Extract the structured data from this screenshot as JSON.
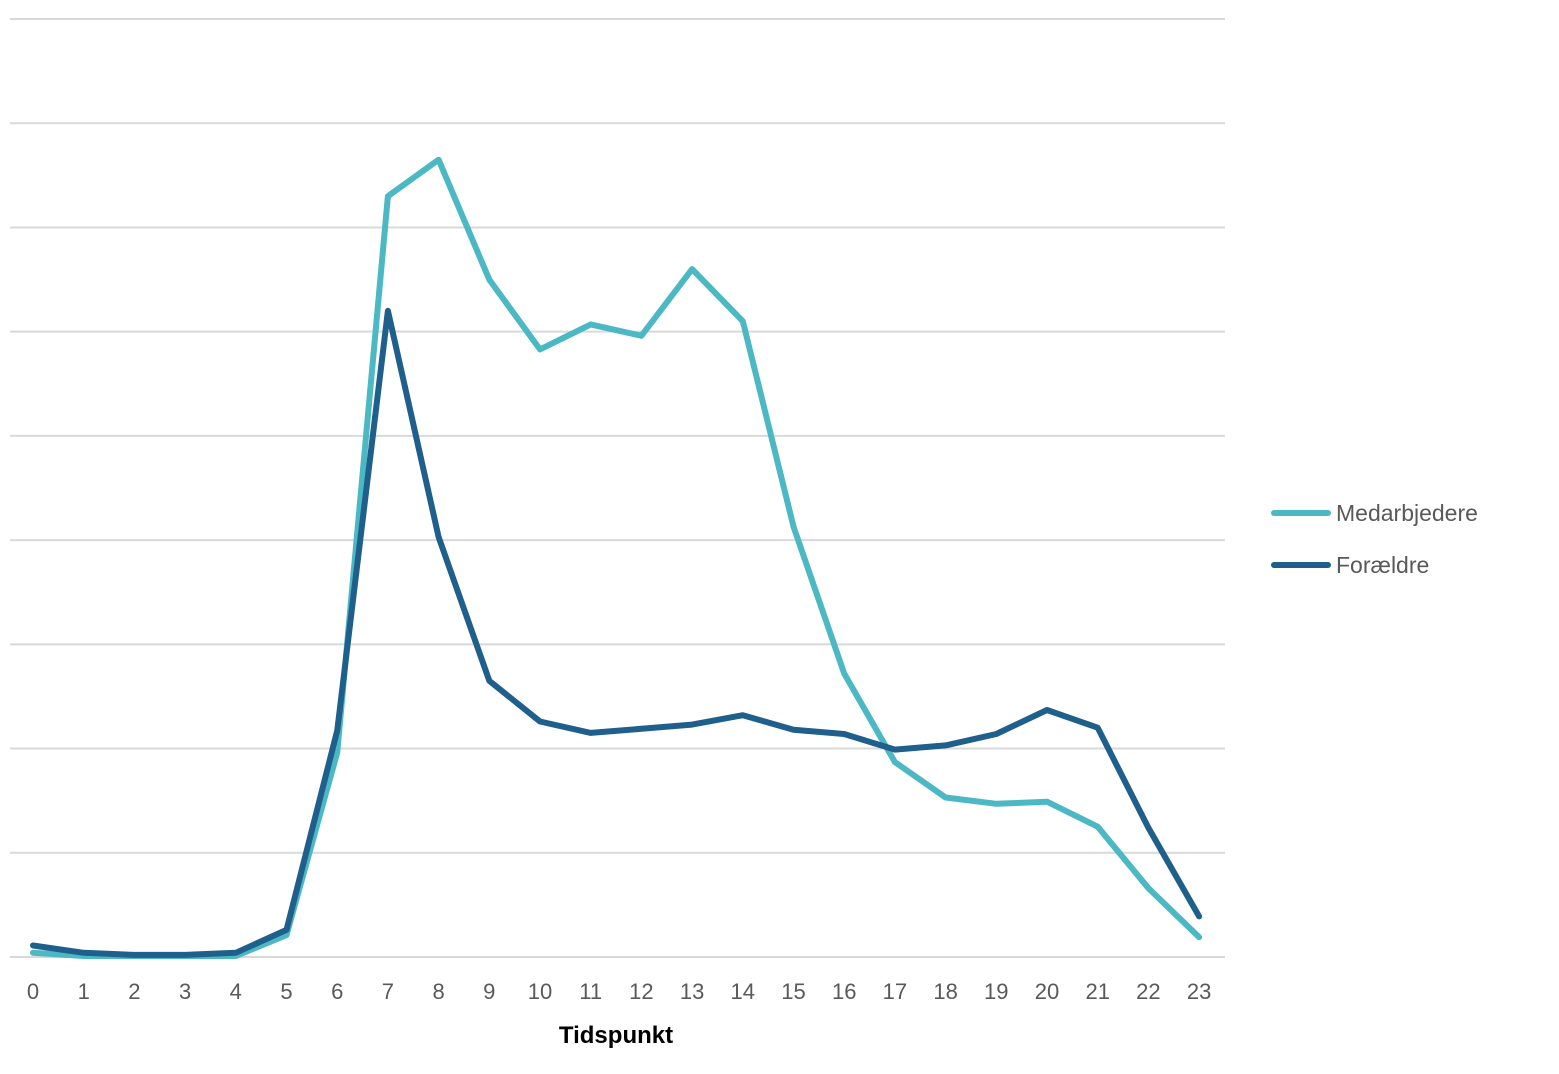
{
  "chart_data": {
    "type": "line",
    "title": "",
    "xlabel": "Tidspunkt",
    "ylabel": "",
    "x": [
      0,
      1,
      2,
      3,
      4,
      5,
      6,
      7,
      8,
      9,
      10,
      11,
      12,
      13,
      14,
      15,
      16,
      17,
      18,
      19,
      20,
      21,
      22,
      23
    ],
    "ylim": [
      0,
      9
    ],
    "y_gridlines": [
      0,
      1,
      2,
      3,
      4,
      5,
      6,
      7,
      8,
      9
    ],
    "y_tick_labels_visible": false,
    "grid": true,
    "legend_position": "right",
    "series": [
      {
        "name": "Medarbjedere",
        "color": "#4bb8c4",
        "values": [
          0.04,
          0.01,
          0.01,
          0.01,
          0.01,
          0.21,
          1.96,
          7.3,
          7.65,
          6.5,
          5.83,
          6.07,
          5.96,
          6.6,
          6.1,
          4.13,
          2.72,
          1.87,
          1.53,
          1.47,
          1.49,
          1.25,
          0.66,
          0.19
        ]
      },
      {
        "name": "Forældre",
        "color": "#1f5f8b",
        "values": [
          0.11,
          0.04,
          0.02,
          0.02,
          0.04,
          0.26,
          2.17,
          6.2,
          4.03,
          2.65,
          2.26,
          2.15,
          2.19,
          2.23,
          2.32,
          2.18,
          2.14,
          1.99,
          2.03,
          2.14,
          2.37,
          2.2,
          1.24,
          0.39
        ]
      }
    ]
  }
}
